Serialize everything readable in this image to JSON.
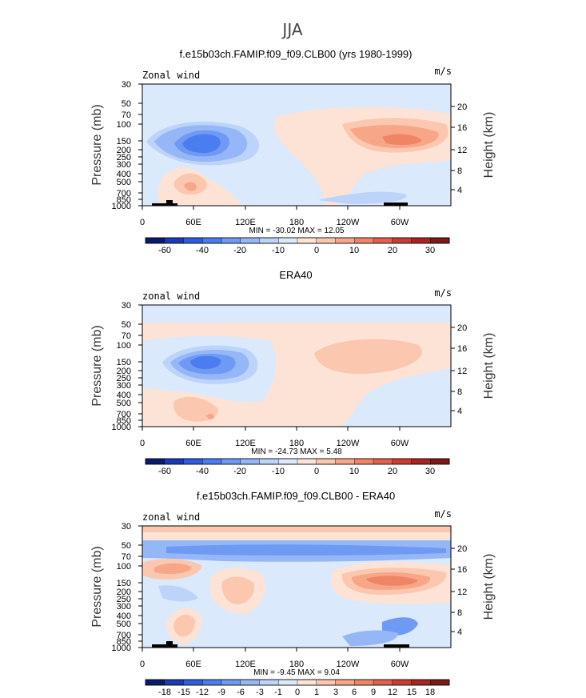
{
  "figure": {
    "title": "JJA"
  },
  "chart_data": [
    {
      "type": "heatmap",
      "title": "f.e15b03ch.FAMIP.f09_f09.CLB00 (yrs 1980-1999)",
      "corner_left": "Zonal wind",
      "corner_right": "m/s",
      "xlabel": "",
      "ylabel": "Pressure (mb)",
      "ylabel_right": "Height (km)",
      "xlim": [
        0,
        360
      ],
      "x_ticks": [
        "0",
        "60E",
        "120E",
        "180",
        "120W",
        "60W"
      ],
      "y_ticks": [
        "30",
        "50",
        "70",
        "100",
        "150",
        "200",
        "250",
        "300",
        "400",
        "500",
        "700",
        "850",
        "1000"
      ],
      "height_ticks": [
        "20",
        "16",
        "12",
        "8",
        "4"
      ],
      "minmax": "MIN = -30.02   MAX =  12.05",
      "colorbar_labels": [
        "-60",
        "-40",
        "-20",
        "-10",
        "0",
        "10",
        "20",
        "30"
      ],
      "colorbar_colors": [
        "#0a1a6e",
        "#1a3bb4",
        "#2c5ede",
        "#4a7df0",
        "#6f9af4",
        "#96b7f7",
        "#bcd3fa",
        "#dbe9fc",
        "#fde3d5",
        "#fbc7af",
        "#f7a688",
        "#f08566",
        "#e2614b",
        "#cc3d31",
        "#a92520",
        "#7e1a15"
      ],
      "topography": true
    },
    {
      "type": "heatmap",
      "title": "ERA40",
      "corner_left": "zonal wind",
      "corner_right": "m/s",
      "xlabel": "",
      "ylabel": "Pressure (mb)",
      "ylabel_right": "Height (km)",
      "xlim": [
        0,
        360
      ],
      "x_ticks": [
        "0",
        "60E",
        "120E",
        "180",
        "120W",
        "60W"
      ],
      "y_ticks": [
        "30",
        "50",
        "70",
        "100",
        "150",
        "200",
        "250",
        "300",
        "400",
        "500",
        "700",
        "850",
        "1000"
      ],
      "height_ticks": [
        "20",
        "16",
        "12",
        "8",
        "4"
      ],
      "minmax": "MIN = -24.73   MAX =  5.48",
      "colorbar_labels": [
        "-60",
        "-40",
        "-20",
        "-10",
        "0",
        "10",
        "20",
        "30"
      ],
      "colorbar_colors": [
        "#0a1a6e",
        "#1a3bb4",
        "#2c5ede",
        "#4a7df0",
        "#6f9af4",
        "#96b7f7",
        "#bcd3fa",
        "#dbe9fc",
        "#fde3d5",
        "#fbc7af",
        "#f7a688",
        "#f08566",
        "#e2614b",
        "#cc3d31",
        "#a92520",
        "#7e1a15"
      ],
      "topography": false
    },
    {
      "type": "heatmap",
      "title": "f.e15b03ch.FAMIP.f09_f09.CLB00 - ERA40",
      "corner_left": "zonal wind",
      "corner_right": "m/s",
      "xlabel": "",
      "ylabel": "Pressure (mb)",
      "ylabel_right": "Height (km)",
      "xlim": [
        0,
        360
      ],
      "x_ticks": [
        "0",
        "60E",
        "120E",
        "180",
        "120W",
        "60W"
      ],
      "y_ticks": [
        "30",
        "50",
        "70",
        "100",
        "150",
        "200",
        "250",
        "300",
        "400",
        "500",
        "700",
        "850",
        "1000"
      ],
      "height_ticks": [
        "20",
        "16",
        "12",
        "8",
        "4"
      ],
      "minmax": "MIN = -9.45   MAX =  9.04",
      "colorbar_labels": [
        "-18",
        "-15",
        "-12",
        "-9",
        "-6",
        "-3",
        "-1",
        "0",
        "1",
        "3",
        "6",
        "9",
        "12",
        "15",
        "18"
      ],
      "colorbar_colors": [
        "#0a1a6e",
        "#1a3bb4",
        "#2c5ede",
        "#4a7df0",
        "#6f9af4",
        "#96b7f7",
        "#bcd3fa",
        "#dbe9fc",
        "#fde3d5",
        "#fbc7af",
        "#f7a688",
        "#f08566",
        "#e2614b",
        "#cc3d31",
        "#a92520",
        "#7e1a15"
      ],
      "topography": true
    }
  ]
}
